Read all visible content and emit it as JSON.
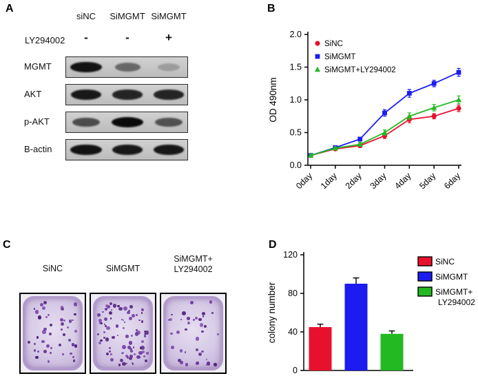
{
  "panels": {
    "A": {
      "label": "A",
      "col_headers": [
        "siNC",
        "SiMGMT",
        "SiMGMT"
      ],
      "treatment": {
        "label": "LY294002",
        "values": [
          "-",
          "-",
          "+"
        ]
      },
      "blot_rows": [
        {
          "label": "MGMT",
          "band_intensities": [
            0.95,
            0.5,
            0.22
          ]
        },
        {
          "label": "AKT",
          "band_intensities": [
            0.92,
            0.86,
            0.86
          ]
        },
        {
          "label": "p-AKT",
          "band_intensities": [
            0.65,
            1.0,
            0.62
          ]
        },
        {
          "label": "B-actin",
          "band_intensities": [
            0.95,
            0.92,
            0.93
          ]
        }
      ]
    },
    "B": {
      "label": "B"
    },
    "C": {
      "label": "C",
      "plates": [
        {
          "label_lines": [
            "SiNC"
          ],
          "colony_count": 45
        },
        {
          "label_lines": [
            "SiMGMT"
          ],
          "colony_count": 90
        },
        {
          "label_lines": [
            "SiMGMT+",
            "LY294002"
          ],
          "colony_count": 38
        }
      ]
    },
    "D": {
      "label": "D"
    }
  },
  "chart_data": [
    {
      "id": "growth-curve",
      "type": "line",
      "title": "",
      "xlabel": "",
      "ylabel": "OD 490nm",
      "x_categories": [
        "0day",
        "1day",
        "2day",
        "3day",
        "4day",
        "5day",
        "6day"
      ],
      "ylim": [
        0,
        2.0
      ],
      "yticks": [
        0.0,
        0.5,
        1.0,
        1.5,
        2.0
      ],
      "grid": false,
      "legend_position": "upper-left-inside",
      "series": [
        {
          "name": "SiNC",
          "color": "#e8112d",
          "marker": "circle",
          "values": [
            0.15,
            0.25,
            0.3,
            0.45,
            0.7,
            0.75,
            0.87
          ],
          "errors": [
            0.02,
            0.02,
            0.03,
            0.04,
            0.05,
            0.04,
            0.05
          ]
        },
        {
          "name": "SiMGMT",
          "color": "#1c1cf0",
          "marker": "square",
          "values": [
            0.15,
            0.27,
            0.4,
            0.8,
            1.1,
            1.25,
            1.42
          ],
          "errors": [
            0.02,
            0.02,
            0.03,
            0.05,
            0.06,
            0.05,
            0.06
          ]
        },
        {
          "name": "SiMGMT+LY294002",
          "color": "#23b923",
          "marker": "triangle",
          "values": [
            0.15,
            0.26,
            0.32,
            0.5,
            0.75,
            0.88,
            1.0
          ],
          "errors": [
            0.02,
            0.02,
            0.03,
            0.04,
            0.05,
            0.05,
            0.06
          ]
        }
      ]
    },
    {
      "id": "colony-number",
      "type": "bar",
      "title": "",
      "xlabel": "",
      "ylabel": "colony number",
      "categories": [
        "SiNC",
        "SiMGMT",
        "SiMGMT+LY294002"
      ],
      "values": [
        45,
        90,
        38
      ],
      "errors": [
        3,
        6,
        3
      ],
      "colors": [
        "#e8112d",
        "#1c1cf0",
        "#23b923"
      ],
      "ylim": [
        0,
        120
      ],
      "yticks": [
        0,
        40,
        80,
        120
      ],
      "grid": false,
      "legend_position": "right",
      "legend_labels": [
        [
          "SiNC"
        ],
        [
          "SiMGMT"
        ],
        [
          "SiMGMT+",
          "LY294002"
        ]
      ]
    }
  ]
}
